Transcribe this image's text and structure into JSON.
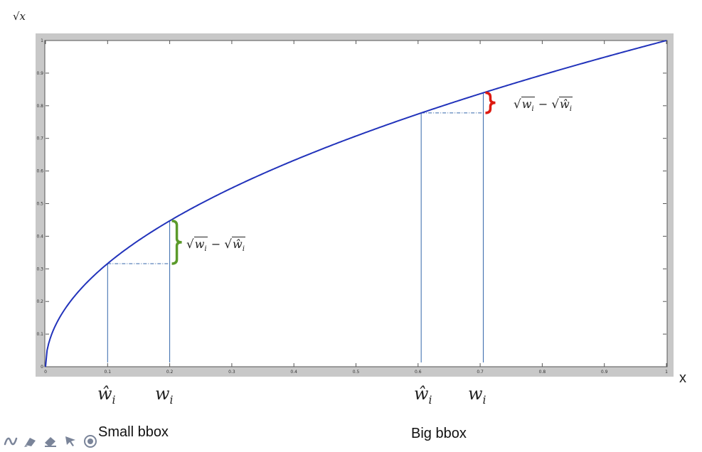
{
  "chart_data": {
    "type": "line",
    "function": "sqrt",
    "title": "",
    "ylabel": "√x",
    "xlabel": "x",
    "xlim": [
      0,
      1
    ],
    "ylim": [
      0,
      1
    ],
    "x_ticks": [
      "0",
      "0.1",
      "0.2",
      "0.3",
      "0.4",
      "0.5",
      "0.6",
      "0.7",
      "0.8",
      "0.9",
      "1"
    ],
    "y_ticks": [
      "0",
      "0.1",
      "0.2",
      "0.3",
      "0.4",
      "0.5",
      "0.6",
      "0.7",
      "0.8",
      "0.9",
      "1"
    ],
    "series": [
      {
        "name": "√x",
        "color": "#2233bb",
        "x": [
          0,
          0.01,
          0.02,
          0.04,
          0.06,
          0.08,
          0.1,
          0.15,
          0.2,
          0.25,
          0.3,
          0.35,
          0.4,
          0.45,
          0.5,
          0.55,
          0.6,
          0.65,
          0.7,
          0.75,
          0.8,
          0.85,
          0.9,
          0.95,
          1.0
        ],
        "y": [
          0,
          0.1,
          0.141,
          0.2,
          0.245,
          0.283,
          0.316,
          0.387,
          0.447,
          0.5,
          0.548,
          0.592,
          0.632,
          0.671,
          0.707,
          0.742,
          0.775,
          0.806,
          0.837,
          0.866,
          0.894,
          0.922,
          0.949,
          0.975,
          1.0
        ]
      }
    ],
    "groups": [
      {
        "name": "small",
        "caption": "Small bbox",
        "x_hat": 0.1,
        "y_hat": 0.316,
        "x_true": 0.2,
        "y_true": 0.447,
        "brace_color": "#5a9a2a"
      },
      {
        "name": "big",
        "caption": "Big bbox",
        "x_hat": 0.605,
        "y_hat": 0.778,
        "x_true": 0.705,
        "y_true": 0.84,
        "brace_color": "#dd1a10"
      }
    ]
  },
  "labels": {
    "w_hat": "ŵ",
    "w": "w",
    "sub_i": "i",
    "sqrt_symbol": "√",
    "minus": "−",
    "small_caption": "Small bbox",
    "big_caption": "Big bbox"
  },
  "colors": {
    "frame_bg": "#c8c8c8",
    "plot_bg": "#ffffff",
    "curve": "#2233bb",
    "drop_line": "#3366aa"
  },
  "toolbar": {
    "icons": [
      "pen-curve-icon",
      "highlighter-icon",
      "eraser-icon",
      "pointer-arrow-icon",
      "laser-pointer-icon"
    ]
  }
}
